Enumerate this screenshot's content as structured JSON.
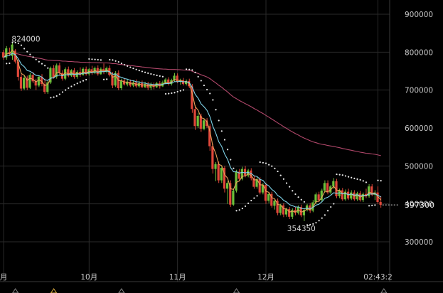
{
  "chart_data": {
    "type": "candlestick",
    "y_ticks": [
      300000,
      400000,
      500000,
      600000,
      700000,
      800000,
      900000
    ],
    "ylim": [
      230000,
      930000
    ],
    "x_ticks": [
      {
        "label": "月",
        "index": 0
      },
      {
        "label": "10月",
        "index": 29
      },
      {
        "label": "11月",
        "index": 59
      },
      {
        "label": "12月",
        "index": 89
      },
      {
        "label": "02:43:2",
        "index": 127
      }
    ],
    "annotations": {
      "high_label": "824000",
      "high_value": 824000,
      "high_index": 3,
      "low_label": "354350",
      "low_value": 354350,
      "low_index": 102,
      "last_price_label": "397300",
      "last_price_value": 397300
    },
    "ma_long_start": 795000,
    "ma_long_end": 527000,
    "candles": [
      [
        800000,
        806000,
        780000,
        786000
      ],
      [
        786000,
        816000,
        780000,
        810000
      ],
      [
        800000,
        812000,
        790000,
        798000
      ],
      [
        790000,
        824000,
        780000,
        820000
      ],
      [
        804000,
        808000,
        770000,
        775000
      ],
      [
        775000,
        782000,
        725000,
        735000
      ],
      [
        735000,
        742000,
        698000,
        704000
      ],
      [
        704000,
        740000,
        700000,
        732000
      ],
      [
        732000,
        738000,
        700000,
        706000
      ],
      [
        706000,
        745000,
        703000,
        740000
      ],
      [
        740000,
        748000,
        718000,
        723000
      ],
      [
        723000,
        730000,
        700000,
        712000
      ],
      [
        712000,
        738000,
        708000,
        735000
      ],
      [
        735000,
        742000,
        710000,
        716000
      ],
      [
        716000,
        730000,
        690000,
        695000
      ],
      [
        695000,
        725000,
        690000,
        720000
      ],
      [
        720000,
        762000,
        716000,
        758000
      ],
      [
        758000,
        766000,
        730000,
        735000
      ],
      [
        735000,
        770000,
        730000,
        765000
      ],
      [
        765000,
        772000,
        740000,
        745000
      ],
      [
        745000,
        752000,
        725000,
        730000
      ],
      [
        730000,
        760000,
        726000,
        755000
      ],
      [
        755000,
        762000,
        734000,
        738000
      ],
      [
        738000,
        755000,
        735000,
        752000
      ],
      [
        752000,
        758000,
        730000,
        735000
      ],
      [
        735000,
        752000,
        730000,
        748000
      ],
      [
        748000,
        760000,
        735000,
        740000
      ],
      [
        740000,
        760000,
        738000,
        756000
      ],
      [
        756000,
        762000,
        738000,
        742000
      ],
      [
        742000,
        758000,
        738000,
        755000
      ],
      [
        755000,
        764000,
        740000,
        745000
      ],
      [
        745000,
        762000,
        742000,
        758000
      ],
      [
        758000,
        765000,
        738000,
        742000
      ],
      [
        742000,
        760000,
        740000,
        756000
      ],
      [
        756000,
        770000,
        742000,
        748000
      ],
      [
        748000,
        762000,
        744000,
        758000
      ],
      [
        758000,
        765000,
        736000,
        740000
      ],
      [
        740000,
        748000,
        705000,
        712000
      ],
      [
        712000,
        750000,
        708000,
        745000
      ],
      [
        745000,
        752000,
        700000,
        705000
      ],
      [
        705000,
        730000,
        700000,
        725000
      ],
      [
        725000,
        732000,
        712000,
        715000
      ],
      [
        715000,
        728000,
        710000,
        722000
      ],
      [
        722000,
        728000,
        708000,
        712000
      ],
      [
        712000,
        726000,
        708000,
        720000
      ],
      [
        720000,
        728000,
        706000,
        710000
      ],
      [
        710000,
        724000,
        706000,
        718000
      ],
      [
        718000,
        725000,
        705000,
        708000
      ],
      [
        708000,
        722000,
        705000,
        716000
      ],
      [
        716000,
        722000,
        700000,
        706000
      ],
      [
        706000,
        720000,
        700000,
        714000
      ],
      [
        714000,
        720000,
        702000,
        708000
      ],
      [
        708000,
        722000,
        705000,
        718000
      ],
      [
        718000,
        724000,
        704000,
        710000
      ],
      [
        710000,
        725000,
        708000,
        720000
      ],
      [
        720000,
        732000,
        715000,
        728000
      ],
      [
        728000,
        734000,
        712000,
        716000
      ],
      [
        716000,
        730000,
        712000,
        726000
      ],
      [
        726000,
        745000,
        722000,
        738000
      ],
      [
        738000,
        744000,
        718000,
        722000
      ],
      [
        722000,
        730000,
        714000,
        726000
      ],
      [
        726000,
        732000,
        712000,
        716000
      ],
      [
        716000,
        728000,
        712000,
        724000
      ],
      [
        724000,
        730000,
        705000,
        710000
      ],
      [
        710000,
        716000,
        640000,
        650000
      ],
      [
        650000,
        660000,
        595000,
        605000
      ],
      [
        605000,
        640000,
        600000,
        632000
      ],
      [
        632000,
        638000,
        590000,
        598000
      ],
      [
        598000,
        625000,
        594000,
        620000
      ],
      [
        620000,
        626000,
        600000,
        605000
      ],
      [
        605000,
        610000,
        540000,
        552000
      ],
      [
        552000,
        558000,
        480000,
        492000
      ],
      [
        492000,
        510000,
        460000,
        505000
      ],
      [
        505000,
        512000,
        455000,
        462000
      ],
      [
        462000,
        500000,
        455000,
        495000
      ],
      [
        495000,
        500000,
        430000,
        440000
      ],
      [
        440000,
        460000,
        400000,
        455000
      ],
      [
        455000,
        462000,
        392000,
        398000
      ],
      [
        398000,
        440000,
        395000,
        435000
      ],
      [
        435000,
        490000,
        430000,
        485000
      ],
      [
        485000,
        492000,
        460000,
        466000
      ],
      [
        466000,
        498000,
        462000,
        492000
      ],
      [
        492000,
        500000,
        470000,
        475000
      ],
      [
        475000,
        492000,
        470000,
        488000
      ],
      [
        488000,
        494000,
        462000,
        468000
      ],
      [
        468000,
        474000,
        440000,
        445000
      ],
      [
        445000,
        470000,
        440000,
        465000
      ],
      [
        465000,
        470000,
        425000,
        430000
      ],
      [
        430000,
        455000,
        425000,
        450000
      ],
      [
        450000,
        456000,
        400000,
        408000
      ],
      [
        408000,
        430000,
        402000,
        426000
      ],
      [
        426000,
        432000,
        390000,
        395000
      ],
      [
        395000,
        412000,
        385000,
        408000
      ],
      [
        408000,
        414000,
        370000,
        376000
      ],
      [
        376000,
        400000,
        370000,
        396000
      ],
      [
        396000,
        402000,
        365000,
        372000
      ],
      [
        372000,
        390000,
        366000,
        386000
      ],
      [
        386000,
        392000,
        360000,
        366000
      ],
      [
        366000,
        388000,
        360000,
        384000
      ],
      [
        384000,
        392000,
        370000,
        376000
      ],
      [
        376000,
        396000,
        372000,
        392000
      ],
      [
        392000,
        398000,
        365000,
        370000
      ],
      [
        370000,
        388000,
        354350,
        384000
      ],
      [
        384000,
        400000,
        380000,
        396000
      ],
      [
        396000,
        402000,
        376000,
        382000
      ],
      [
        382000,
        410000,
        378000,
        404000
      ],
      [
        404000,
        430000,
        400000,
        425000
      ],
      [
        425000,
        432000,
        405000,
        410000
      ],
      [
        410000,
        440000,
        406000,
        435000
      ],
      [
        435000,
        462000,
        430000,
        455000
      ],
      [
        455000,
        462000,
        425000,
        430000
      ],
      [
        430000,
        450000,
        425000,
        446000
      ],
      [
        446000,
        468000,
        440000,
        460000
      ],
      [
        460000,
        466000,
        415000,
        420000
      ],
      [
        420000,
        440000,
        415000,
        436000
      ],
      [
        436000,
        442000,
        408000,
        412000
      ],
      [
        412000,
        438000,
        408000,
        432000
      ],
      [
        432000,
        440000,
        410000,
        414000
      ],
      [
        414000,
        436000,
        410000,
        430000
      ],
      [
        430000,
        436000,
        408000,
        412000
      ],
      [
        412000,
        432000,
        408000,
        428000
      ],
      [
        428000,
        434000,
        406000,
        410000
      ],
      [
        410000,
        430000,
        405000,
        426000
      ],
      [
        426000,
        440000,
        415000,
        420000
      ],
      [
        420000,
        452000,
        416000,
        446000
      ],
      [
        446000,
        452000,
        420000,
        424000
      ],
      [
        424000,
        436000,
        410000,
        430000
      ],
      [
        430000,
        446000,
        400000,
        405000
      ],
      [
        405000,
        420000,
        390000,
        397300
      ]
    ]
  }
}
